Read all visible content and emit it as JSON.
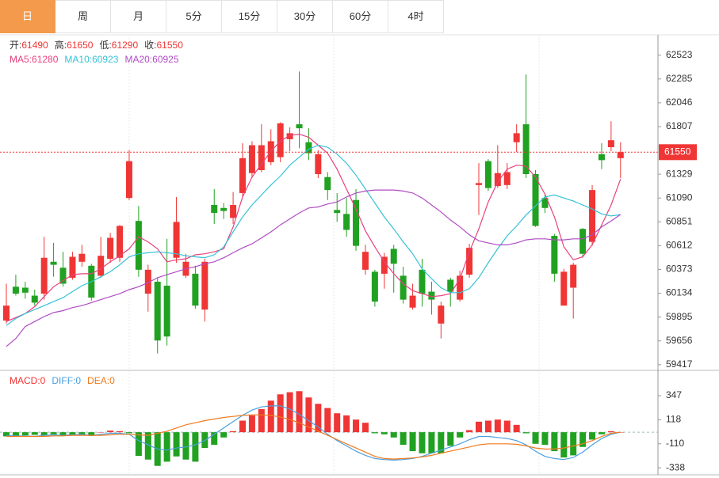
{
  "chart_data": {
    "type": "candlestick",
    "tabs": [
      "日",
      "周",
      "月",
      "5分",
      "15分",
      "30分",
      "60分",
      "4时"
    ],
    "active_tab": 0,
    "ohlc_labels": [
      "开:",
      "高:",
      "低:",
      "收:"
    ],
    "up_color": "#f03535",
    "down_color": "#21a121",
    "open": [
      59860,
      60200,
      60190,
      60110,
      60130,
      60450,
      60390,
      60290,
      60450,
      60410,
      60310,
      60480,
      60490,
      61090,
      60860,
      60130,
      60250,
      60210,
      60490,
      60310,
      60330,
      59970,
      61020,
      60990,
      60890,
      61140,
      61340,
      61370,
      61450,
      61500,
      61680,
      61830,
      61650,
      61330,
      61300,
      60970,
      60930,
      61070,
      60370,
      60350,
      60330,
      60580,
      60310,
      59990,
      60370,
      60150,
      59830,
      60270,
      60070,
      60320,
      61220,
      61460,
      61210,
      61220,
      61650,
      61830,
      61330,
      61090,
      60710,
      60010,
      60190,
      60780,
      60650,
      61530,
      61600,
      61490
    ],
    "high": [
      60230,
      60320,
      60250,
      60170,
      60700,
      60640,
      60550,
      60550,
      60620,
      60430,
      60700,
      60740,
      60820,
      61570,
      61010,
      60420,
      60290,
      60680,
      61100,
      60530,
      60410,
      60480,
      61180,
      61040,
      61150,
      61640,
      61660,
      61830,
      61780,
      61850,
      61800,
      62360,
      61790,
      61570,
      61350,
      61140,
      61090,
      61180,
      60620,
      60370,
      60540,
      60620,
      60400,
      60230,
      60480,
      60250,
      60050,
      60290,
      60360,
      60630,
      61440,
      61480,
      61620,
      61440,
      61830,
      62330,
      61370,
      61130,
      60730,
      60380,
      60440,
      60790,
      61220,
      61640,
      61860,
      61650
    ],
    "low": [
      59830,
      60110,
      60080,
      60010,
      60070,
      60300,
      60200,
      60270,
      60400,
      60060,
      60290,
      60440,
      60450,
      61070,
      60300,
      59950,
      59530,
      59610,
      60440,
      60290,
      59980,
      59850,
      60830,
      60880,
      60830,
      61110,
      61290,
      61350,
      61420,
      61450,
      61560,
      61590,
      61470,
      61290,
      61070,
      60850,
      60700,
      60560,
      60320,
      60000,
      60180,
      60140,
      60030,
      59970,
      60000,
      59920,
      59680,
      60000,
      60050,
      60290,
      60920,
      61160,
      61190,
      61180,
      61550,
      61290,
      60800,
      60940,
      60250,
      60010,
      59880,
      60490,
      60610,
      61380,
      61560,
      61290
    ],
    "close": [
      60010,
      60130,
      60140,
      60040,
      60490,
      60420,
      60230,
      60500,
      60530,
      60090,
      60510,
      60690,
      60810,
      61460,
      60370,
      60370,
      59660,
      59700,
      60850,
      60450,
      60010,
      60450,
      60940,
      60960,
      61020,
      61490,
      61620,
      61620,
      61660,
      61840,
      61740,
      61790,
      61540,
      61530,
      61170,
      60940,
      60770,
      60610,
      60550,
      60050,
      60500,
      60430,
      60070,
      60110,
      60130,
      60070,
      60010,
      60150,
      60310,
      60590,
      61240,
      61190,
      61340,
      61350,
      61740,
      61330,
      60810,
      60990,
      60330,
      60350,
      60420,
      60530,
      61170,
      61470,
      61670,
      61550
    ],
    "series": [
      {
        "name": "MA5:",
        "color": "#e8417e",
        "values": [
          59850,
          59890,
          59930,
          60000,
          60100,
          60200,
          60260,
          60320,
          60330,
          60330,
          60380,
          60450,
          60510,
          60580,
          60700,
          60650,
          60580,
          60450,
          60470,
          60480,
          60520,
          60530,
          60550,
          60580,
          60800,
          61100,
          61300,
          61430,
          61560,
          61660,
          61720,
          61730,
          61700,
          61620,
          61540,
          61380,
          61180,
          60980,
          60760,
          60600,
          60450,
          60330,
          60230,
          60160,
          60130,
          60100,
          60110,
          60130,
          60280,
          60550,
          60780,
          61050,
          61250,
          61380,
          61420,
          61410,
          61300,
          61130,
          60900,
          60600,
          60470,
          60500,
          60620,
          60820,
          61020,
          61280
        ]
      },
      {
        "name": "MA10:",
        "color": "#35c2d6",
        "values": [
          59810,
          59880,
          59930,
          59970,
          60010,
          60050,
          60090,
          60150,
          60210,
          60250,
          60300,
          60350,
          60420,
          60500,
          60530,
          60540,
          60550,
          60540,
          60530,
          60510,
          60500,
          60490,
          60520,
          60600,
          60750,
          60900,
          61020,
          61120,
          61220,
          61310,
          61420,
          61500,
          61580,
          61620,
          61600,
          61530,
          61440,
          61320,
          61180,
          61040,
          60900,
          60780,
          60650,
          60530,
          60380,
          60280,
          60190,
          60140,
          60140,
          60180,
          60290,
          60440,
          60580,
          60710,
          60810,
          60920,
          61010,
          61100,
          61120,
          61090,
          61060,
          61020,
          60980,
          60930,
          60910,
          60923
        ]
      },
      {
        "name": "MA20:",
        "color": "#b04cc4",
        "values": [
          59600,
          59680,
          59800,
          59850,
          59900,
          59940,
          59960,
          59990,
          60010,
          60040,
          60070,
          60100,
          60130,
          60170,
          60200,
          60240,
          60290,
          60320,
          60350,
          60380,
          60400,
          60430,
          60450,
          60490,
          60540,
          60590,
          60630,
          60690,
          60750,
          60820,
          60880,
          60940,
          60990,
          61000,
          61030,
          61050,
          61100,
          61140,
          61160,
          61170,
          61170,
          61170,
          61160,
          61140,
          61090,
          61020,
          60950,
          60870,
          60800,
          60720,
          60660,
          60640,
          60620,
          60620,
          60640,
          60670,
          60680,
          60680,
          60670,
          60670,
          60680,
          60680,
          60720,
          60800,
          60860,
          60925
        ]
      }
    ],
    "ylim": [
      59360,
      62720
    ],
    "yticks": [
      59417,
      59656,
      59895,
      60134,
      60373,
      60612,
      60851,
      61090,
      61329,
      61807,
      62046,
      62285,
      62523
    ],
    "macd": {
      "ylim": [
        -405,
        535
      ],
      "yticks": [
        -338,
        -110,
        118,
        347
      ],
      "series": [
        {
          "name": "MACD:",
          "color": "#f03535",
          "values": [
            -40,
            -40,
            -30,
            -25,
            -30,
            -20,
            -30,
            -25,
            -20,
            -35,
            0,
            15,
            10,
            -10,
            -225,
            -260,
            -320,
            -280,
            -230,
            -260,
            -280,
            -150,
            -120,
            -50,
            10,
            110,
            160,
            220,
            300,
            360,
            380,
            390,
            330,
            270,
            230,
            180,
            160,
            120,
            90,
            -10,
            -20,
            -50,
            -120,
            -180,
            -200,
            -200,
            -200,
            -130,
            -50,
            20,
            100,
            110,
            120,
            110,
            70,
            -10,
            -110,
            -120,
            -180,
            -240,
            -220,
            -140,
            -70,
            -20,
            10,
            0
          ]
        },
        {
          "name": "DIFF:",
          "color": "#4a9fe0",
          "values": [
            -30,
            -35,
            -35,
            -40,
            -30,
            -25,
            -30,
            -25,
            -20,
            -30,
            -20,
            -10,
            -10,
            -20,
            -80,
            -120,
            -160,
            -170,
            -150,
            -140,
            -120,
            -80,
            -20,
            40,
            100,
            160,
            210,
            240,
            250,
            250,
            220,
            170,
            110,
            50,
            -20,
            -80,
            -130,
            -180,
            -220,
            -250,
            -260,
            -265,
            -260,
            -250,
            -230,
            -200,
            -170,
            -140,
            -110,
            -70,
            -40,
            -40,
            -50,
            -60,
            -80,
            -120,
            -180,
            -230,
            -250,
            -260,
            -240,
            -190,
            -120,
            -60,
            -20,
            0
          ]
        },
        {
          "name": "DEA:",
          "color": "#f07a1e",
          "values": [
            -40,
            -40,
            -40,
            -40,
            -40,
            -35,
            -35,
            -30,
            -30,
            -30,
            -30,
            -25,
            -20,
            -20,
            -25,
            -30,
            -10,
            10,
            40,
            70,
            90,
            110,
            125,
            140,
            150,
            160,
            165,
            165,
            160,
            145,
            120,
            90,
            50,
            10,
            -30,
            -70,
            -110,
            -150,
            -190,
            -230,
            -250,
            -255,
            -250,
            -245,
            -235,
            -220,
            -200,
            -180,
            -160,
            -140,
            -120,
            -110,
            -110,
            -110,
            -115,
            -130,
            -150,
            -160,
            -160,
            -150,
            -130,
            -110,
            -80,
            -40,
            -10,
            0
          ]
        }
      ]
    }
  }
}
